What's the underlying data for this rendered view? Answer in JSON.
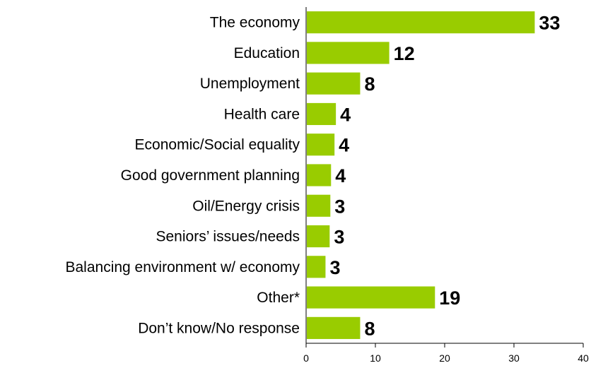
{
  "chart_data": {
    "type": "bar",
    "orientation": "horizontal",
    "categories": [
      "The economy",
      "Education",
      "Unemployment",
      "Health care",
      "Economic/Social equality",
      "Good government planning",
      "Oil/Energy crisis",
      "Seniors’ issues/needs",
      "Balancing environment w/ economy",
      "Other*",
      "Don’t know/No response"
    ],
    "values": [
      33,
      12,
      8,
      4,
      4,
      4,
      3,
      3,
      3,
      19,
      8
    ],
    "bar_lengths": [
      33,
      12,
      7.8,
      4.3,
      4.1,
      3.6,
      3.5,
      3.4,
      2.8,
      18.6,
      7.8
    ],
    "value_labels": [
      "33",
      "12",
      "8",
      "4",
      "4",
      "4",
      "3",
      "3",
      "3",
      "19",
      "8"
    ],
    "title": "",
    "xlabel": "",
    "ylabel": "",
    "xlim": [
      0,
      40
    ],
    "x_ticks": [
      "0",
      "10",
      "20",
      "30",
      "40"
    ],
    "bar_color": "#99cc00",
    "grid": false,
    "legend": "none"
  }
}
